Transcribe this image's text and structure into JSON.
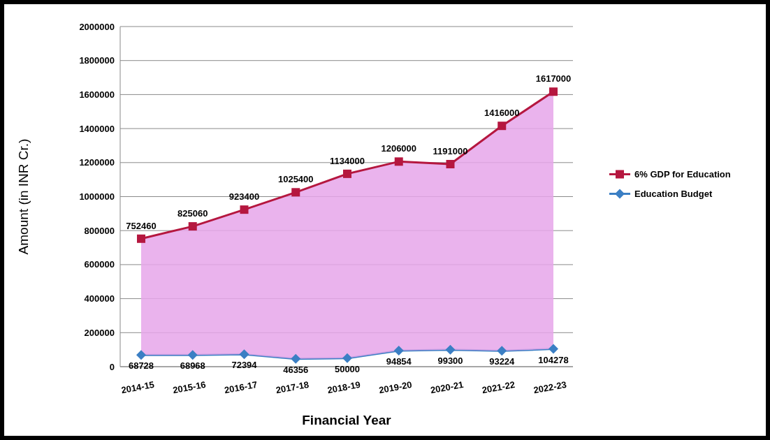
{
  "chart_data": {
    "type": "line",
    "xlabel": "Financial Year",
    "ylabel": "Amount (in INR Cr.)",
    "categories": [
      "2014-15",
      "2015-16",
      "2016-17",
      "2017-18",
      "2018-19",
      "2019-20",
      "2020-21",
      "2021-22",
      "2022-23"
    ],
    "series": [
      {
        "name": "6% GDP for Education",
        "type": "area",
        "color": "#b5173f",
        "marker": "square",
        "values": [
          752460,
          825060,
          923400,
          1025400,
          1134000,
          1206000,
          1191000,
          1416000,
          1617000
        ]
      },
      {
        "name": "Education Budget",
        "color": "#3b7fc4",
        "marker": "diamond",
        "values": [
          68728,
          68968,
          72394,
          46356,
          50000,
          94854,
          99300,
          93224,
          104278
        ]
      }
    ],
    "ylim": [
      0,
      2000000
    ],
    "yticks": [
      0,
      200000,
      400000,
      600000,
      800000,
      1000000,
      1200000,
      1400000,
      1600000,
      1800000,
      2000000
    ],
    "grid": "y",
    "legend": "right",
    "data_labels": true
  }
}
